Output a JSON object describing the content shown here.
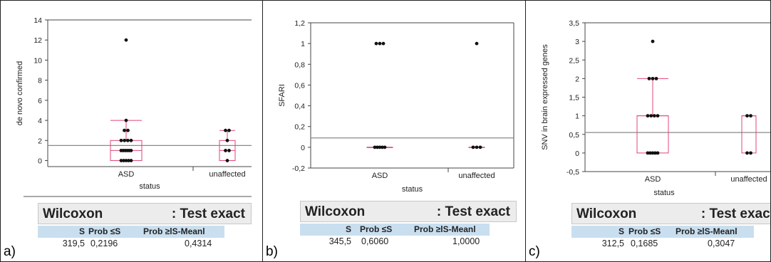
{
  "panels": [
    {
      "id": "a",
      "panel_label": "a)",
      "y_ticks": [
        "14",
        "12",
        "10",
        "8",
        "6",
        "4",
        "2",
        "0"
      ],
      "x_categories": [
        "ASD",
        "unaffected"
      ],
      "wilcoxon": {
        "title": "Wilcoxon",
        "subtitle": ": Test exact",
        "headers": [
          "S",
          "Prob ≤S",
          "Prob ≥lS-Meanl"
        ],
        "values": [
          "319,5",
          "0,2196",
          "0,4314"
        ]
      }
    },
    {
      "id": "b",
      "panel_label": "b)",
      "y_ticks": [
        "1,2",
        "1",
        "0,8",
        "0,6",
        "0,4",
        "0,2",
        "0",
        "-0,2"
      ],
      "x_categories": [
        "ASD",
        "unaffected"
      ],
      "wilcoxon": {
        "title": "Wilcoxon",
        "subtitle": ": Test exact",
        "headers": [
          "S",
          "Prob ≤S",
          "Prob ≥lS-Meanl"
        ],
        "values": [
          "345,5",
          "0,6060",
          "1,0000"
        ]
      }
    },
    {
      "id": "c",
      "panel_label": "c)",
      "y_ticks": [
        "3,5",
        "3",
        "2,5",
        "2",
        "1,5",
        "1",
        "0,5",
        "0",
        "-0,5"
      ],
      "x_categories": [
        "ASD",
        "unaffected"
      ],
      "wilcoxon": {
        "title": "Wilcoxon",
        "subtitle": ": Test exact",
        "headers": [
          "S",
          "Prob ≤S",
          "Prob ≥lS-Meanl"
        ],
        "values": [
          "312,5",
          "0,1685",
          "0,3047"
        ]
      }
    }
  ],
  "chart_data": [
    {
      "type": "scatter",
      "xlabel": "status",
      "ylabel": "de novo confirmed",
      "ylim": [
        -0.6,
        14
      ],
      "categories": [
        "ASD",
        "unaffected"
      ],
      "grand_mean": 1.5,
      "boxes": [
        {
          "category": "ASD",
          "min": 0,
          "q1": 0,
          "median": 1,
          "q3": 2,
          "max": 4
        },
        {
          "category": "unaffected",
          "min": 0,
          "q1": 0,
          "median": 1,
          "q3": 2,
          "max": 3
        }
      ],
      "points": [
        {
          "category": "ASD",
          "values": [
            12,
            4,
            3,
            3,
            2,
            2,
            2,
            2,
            1,
            1,
            1,
            1,
            1,
            1,
            0,
            0,
            0,
            0,
            0
          ]
        },
        {
          "category": "unaffected",
          "values": [
            3,
            3,
            2,
            1,
            1,
            0
          ]
        }
      ]
    },
    {
      "type": "scatter",
      "xlabel": "status",
      "ylabel": "SFARI",
      "ylim": [
        -0.2,
        1.2
      ],
      "categories": [
        "ASD",
        "unaffected"
      ],
      "grand_mean": 0.09,
      "boxes": [
        {
          "category": "ASD",
          "min": 0,
          "q1": 0,
          "median": 0,
          "q3": 0,
          "max": 0
        },
        {
          "category": "unaffected",
          "min": 0,
          "q1": 0,
          "median": 0,
          "q3": 0,
          "max": 0
        }
      ],
      "points": [
        {
          "category": "ASD",
          "values": [
            1,
            1,
            1,
            0,
            0,
            0,
            0,
            0
          ]
        },
        {
          "category": "unaffected",
          "values": [
            1,
            0,
            0,
            0
          ]
        }
      ]
    },
    {
      "type": "scatter",
      "xlabel": "status",
      "ylabel": "SNV in brain expressed genes",
      "ylim": [
        -0.5,
        3.5
      ],
      "categories": [
        "ASD",
        "unaffected"
      ],
      "grand_mean": 0.55,
      "boxes": [
        {
          "category": "ASD",
          "min": 0,
          "q1": 0,
          "median": 1,
          "q3": 1,
          "max": 2
        },
        {
          "category": "unaffected",
          "min": 0,
          "q1": 0,
          "median": 1,
          "q3": 1,
          "max": 1
        }
      ],
      "points": [
        {
          "category": "ASD",
          "values": [
            3,
            2,
            2,
            2,
            1,
            1,
            1,
            1,
            0,
            0,
            0,
            0,
            0
          ]
        },
        {
          "category": "unaffected",
          "values": [
            1,
            1,
            0,
            0
          ]
        }
      ]
    }
  ]
}
